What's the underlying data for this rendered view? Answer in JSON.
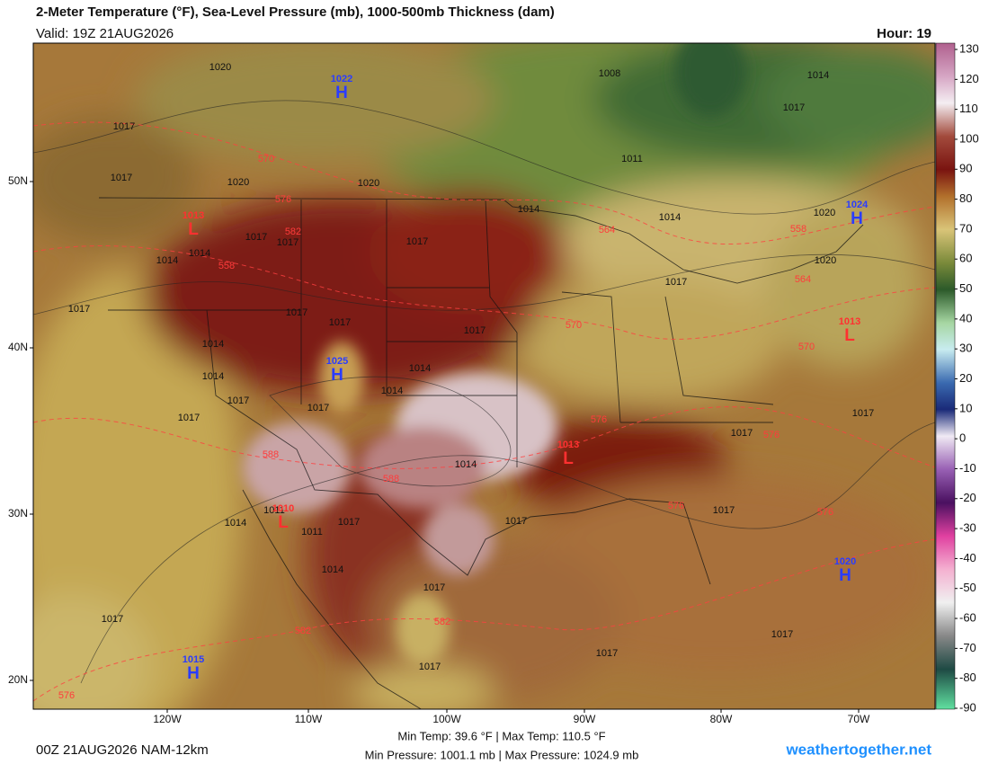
{
  "header": {
    "title": "2-Meter Temperature (°F), Sea-Level Pressure (mb), 1000-500mb Thickness (dam)",
    "valid": "Valid: 19Z 21AUG2026",
    "hour": "Hour: 19"
  },
  "colorbar": {
    "ticks": [
      130,
      120,
      110,
      100,
      90,
      80,
      70,
      60,
      50,
      40,
      30,
      20,
      10,
      0,
      -10,
      -20,
      -30,
      -40,
      -50,
      -60,
      -70,
      -80,
      -90
    ]
  },
  "axes": {
    "lat_labels": [
      "50N",
      "40N",
      "30N",
      "20N"
    ],
    "lon_labels": [
      "120W",
      "110W",
      "100W",
      "90W",
      "80W",
      "70W"
    ]
  },
  "map_labels": {
    "isobars": [
      "1020",
      "1017",
      "1017",
      "1020",
      "1020",
      "1008",
      "1014",
      "1017",
      "1011",
      "1014",
      "1014",
      "1020",
      "1020",
      "1017",
      "1017",
      "1017",
      "1014",
      "1014",
      "1017",
      "1017",
      "1017",
      "1017",
      "1017",
      "1014",
      "1014",
      "1014",
      "1017",
      "1014",
      "1017",
      "1017",
      "1017",
      "1017",
      "1014",
      "1011",
      "1014",
      "1011",
      "1017",
      "1017",
      "1017",
      "1014",
      "1017",
      "1017",
      "1017",
      "1017",
      "1017"
    ],
    "thickness": [
      "570",
      "576",
      "582",
      "558",
      "564",
      "558",
      "564",
      "570",
      "570",
      "576",
      "576",
      "588",
      "588",
      "576",
      "576",
      "582",
      "582",
      "576"
    ],
    "centers": [
      {
        "type": "H",
        "pressure": "1022"
      },
      {
        "type": "L",
        "pressure": "1013"
      },
      {
        "type": "H",
        "pressure": "1025"
      },
      {
        "type": "H",
        "pressure": "1024"
      },
      {
        "type": "L",
        "pressure": "1013"
      },
      {
        "type": "L",
        "pressure": "1013"
      },
      {
        "type": "L",
        "pressure": "1010"
      },
      {
        "type": "H",
        "pressure": "1020"
      },
      {
        "type": "H",
        "pressure": "1015"
      }
    ]
  },
  "footer": {
    "run": "00Z 21AUG2026 NAM-12km",
    "temp_stats": "Min Temp:  39.6 °F | Max Temp: 110.5 °F",
    "pressure_stats": "Min Pressure: 1001.1 mb | Max Pressure: 1024.9 mb",
    "site": "weathertogether.net"
  }
}
